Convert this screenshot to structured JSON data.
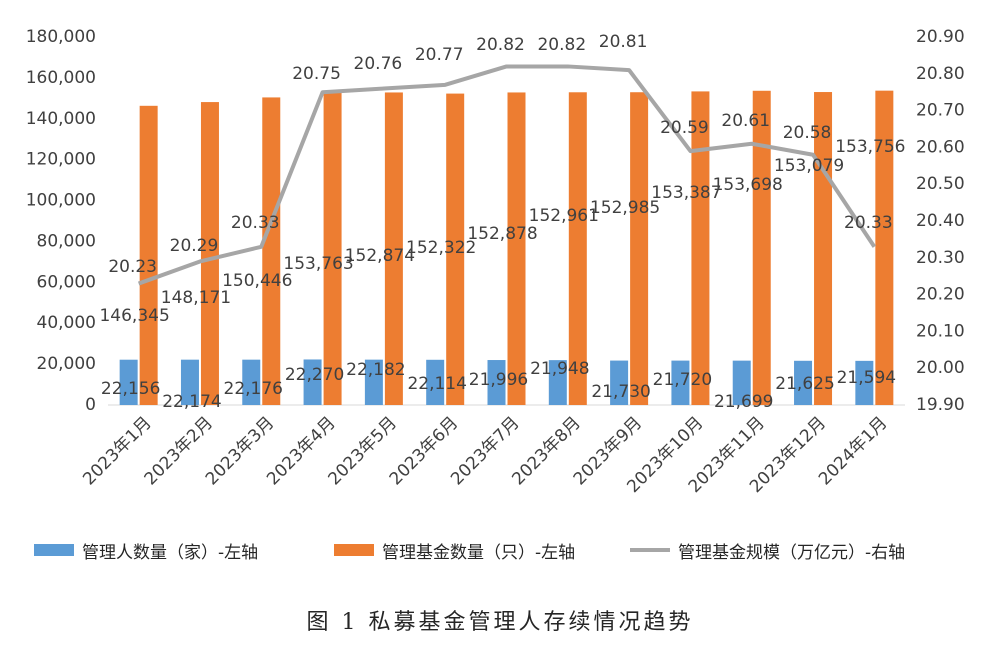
{
  "chart_data": {
    "type": "bar",
    "categories": [
      "2023年1月",
      "2023年2月",
      "2023年3月",
      "2023年4月",
      "2023年5月",
      "2023年6月",
      "2023年7月",
      "2023年8月",
      "2023年9月",
      "2023年10月",
      "2023年11月",
      "2023年12月",
      "2024年1月"
    ],
    "series": [
      {
        "name": "管理人数量（家）-左轴",
        "type": "bar",
        "axis": "left",
        "color": "#5b9bd5",
        "values": [
          22156,
          22174,
          22176,
          22270,
          22182,
          22114,
          21996,
          21948,
          21730,
          21720,
          21699,
          21625,
          21594
        ]
      },
      {
        "name": "管理基金数量（只）-左轴",
        "type": "bar",
        "axis": "left",
        "color": "#ed7d31",
        "values": [
          146345,
          148171,
          150446,
          153763,
          152874,
          152322,
          152878,
          152961,
          152985,
          153387,
          153698,
          153079,
          153756
        ]
      },
      {
        "name": "管理基金规模（万亿元）-右轴",
        "type": "line",
        "axis": "right",
        "color": "#a6a6a6",
        "values": [
          20.23,
          20.29,
          20.33,
          20.75,
          20.76,
          20.77,
          20.82,
          20.82,
          20.81,
          20.59,
          20.61,
          20.58,
          20.33
        ]
      }
    ],
    "left_axis": {
      "ylim": [
        0,
        180000
      ],
      "ticks": [
        "0",
        "20,000",
        "40,000",
        "60,000",
        "80,000",
        "100,000",
        "120,000",
        "140,000",
        "160,000",
        "180,000"
      ]
    },
    "right_axis": {
      "ylim": [
        19.9,
        20.9
      ],
      "ticks": [
        "19.90",
        "20.00",
        "20.10",
        "20.20",
        "20.30",
        "20.40",
        "20.50",
        "20.60",
        "20.70",
        "20.80",
        "20.90"
      ]
    },
    "data_labels": {
      "managers": [
        "22,156",
        "22,174",
        "22,176",
        "22,270",
        "22,182",
        "22,114",
        "21,996",
        "21,948",
        "21,730",
        "21,720",
        "21,699",
        "21,625",
        "21,594"
      ],
      "funds": [
        "146,345",
        "148,171",
        "150,446",
        "153,763",
        "152,874",
        "152,322",
        "152,878",
        "152,961",
        "152,985",
        "153,387",
        "153,698",
        "153,079",
        "153,756"
      ],
      "scale": [
        "20.23",
        "20.29",
        "20.33",
        "20.75",
        "20.76",
        "20.77",
        "20.82",
        "20.82",
        "20.81",
        "20.59",
        "20.61",
        "20.58",
        "20.33"
      ]
    },
    "grid": false,
    "legend_position": "bottom"
  },
  "caption": "图 1  私募基金管理人存续情况趋势"
}
